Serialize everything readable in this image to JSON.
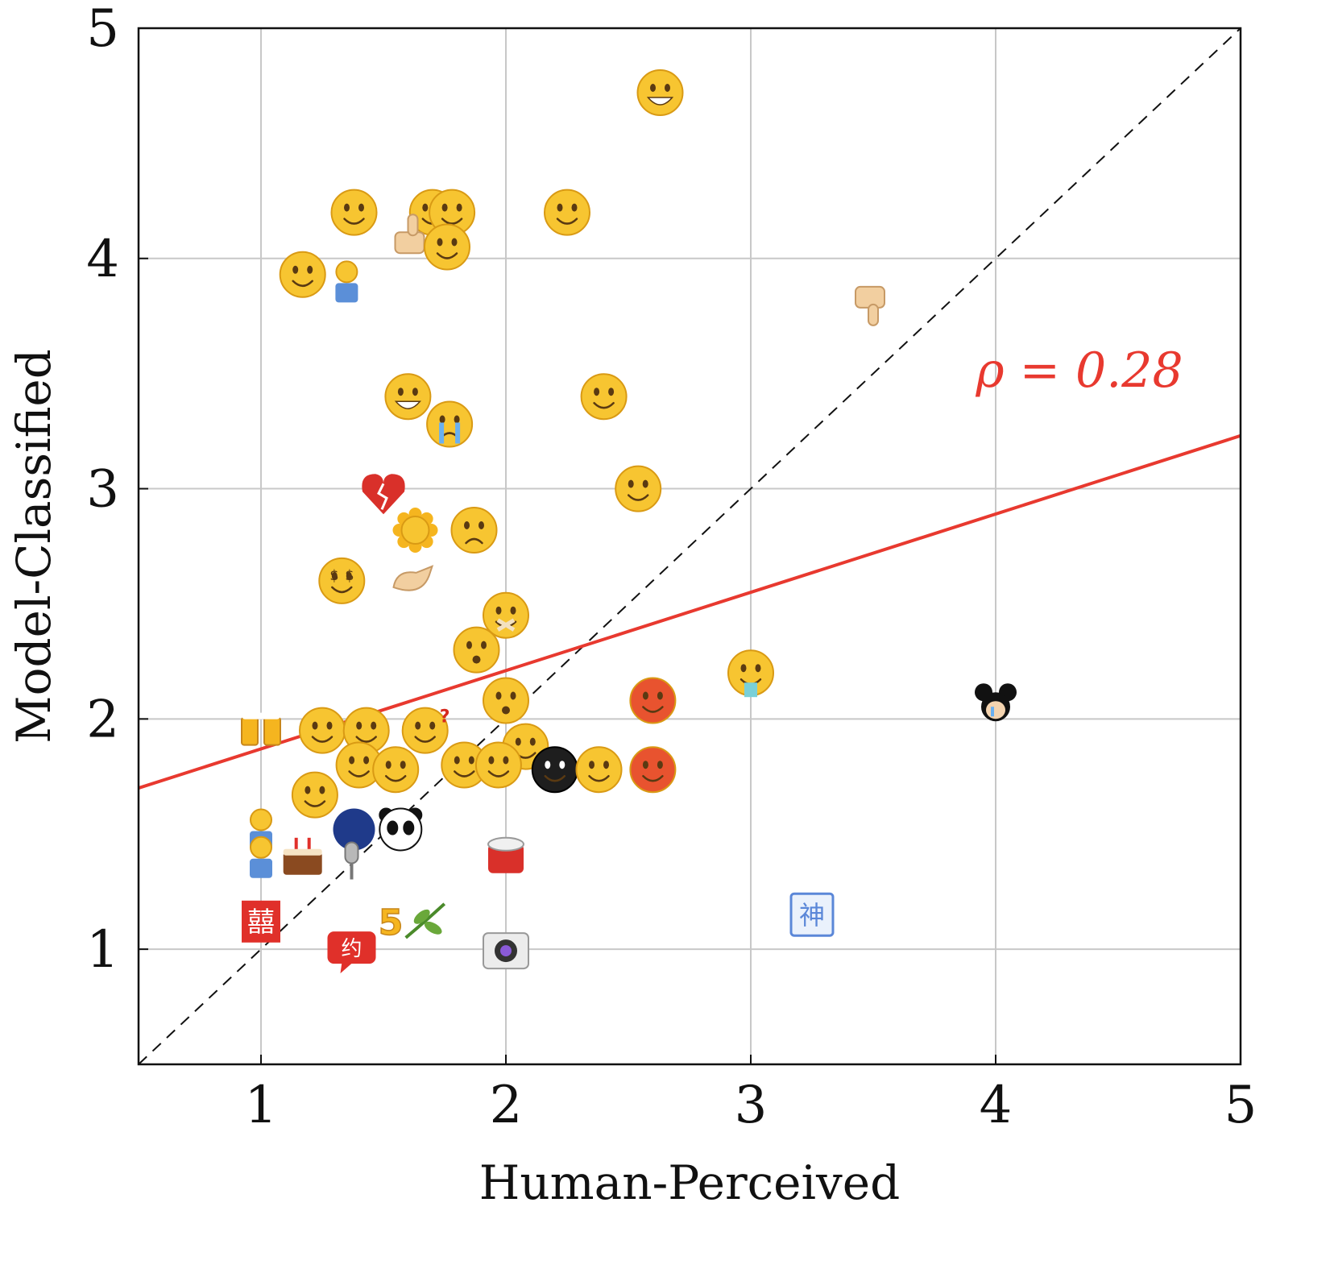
{
  "chart_data": {
    "type": "scatter",
    "xlabel": "Human-Perceived",
    "ylabel": "Model-Classified",
    "xlim": [
      0.5,
      5
    ],
    "ylim": [
      0.5,
      5
    ],
    "xticks": [
      "1",
      "2",
      "3",
      "4",
      "5"
    ],
    "yticks": [
      "1",
      "2",
      "3",
      "4",
      "5"
    ],
    "grid": true,
    "reference_line": "y = x (dashed)",
    "fit_line": {
      "color": "#e8392f",
      "intercept": 1.53,
      "slope": 0.34
    },
    "correlation_label": "ρ = 0.28",
    "colors": {
      "face": "#f7c531",
      "face_dark": "#d99a14",
      "fit": "#e8392f",
      "red_icon": "#e0302a",
      "blue_icon": "#5b87d8"
    },
    "points": [
      {
        "x": 2.63,
        "y": 4.72,
        "icon": "grin-face-icon"
      },
      {
        "x": 1.38,
        "y": 4.2,
        "icon": "eye-roll-face-icon"
      },
      {
        "x": 1.7,
        "y": 4.2,
        "icon": "face-icon"
      },
      {
        "x": 1.78,
        "y": 4.2,
        "icon": "face-icon"
      },
      {
        "x": 1.62,
        "y": 4.1,
        "icon": "thumbs-up-icon"
      },
      {
        "x": 1.76,
        "y": 4.05,
        "icon": "face-icon"
      },
      {
        "x": 2.25,
        "y": 4.2,
        "icon": "smirk-face-icon"
      },
      {
        "x": 1.17,
        "y": 3.93,
        "icon": "wink-tongue-face-icon"
      },
      {
        "x": 1.35,
        "y": 3.9,
        "icon": "person-icon"
      },
      {
        "x": 3.5,
        "y": 3.8,
        "icon": "thumbs-down-icon"
      },
      {
        "x": 1.6,
        "y": 3.4,
        "icon": "big-grin-face-icon"
      },
      {
        "x": 2.4,
        "y": 3.4,
        "icon": "annoyed-face-icon"
      },
      {
        "x": 1.77,
        "y": 3.28,
        "icon": "crying-face-icon"
      },
      {
        "x": 1.5,
        "y": 2.98,
        "icon": "broken-heart-icon"
      },
      {
        "x": 1.63,
        "y": 2.82,
        "icon": "sun-icon"
      },
      {
        "x": 1.87,
        "y": 2.82,
        "icon": "sad-face-icon"
      },
      {
        "x": 2.54,
        "y": 3.0,
        "icon": "face-icon"
      },
      {
        "x": 1.33,
        "y": 2.6,
        "icon": "money-face-icon"
      },
      {
        "x": 1.62,
        "y": 2.6,
        "icon": "hand-icon"
      },
      {
        "x": 2.0,
        "y": 2.45,
        "icon": "shush-face-icon"
      },
      {
        "x": 1.88,
        "y": 2.3,
        "icon": "dizzy-face-icon"
      },
      {
        "x": 2.0,
        "y": 2.08,
        "icon": "surprised-face-icon"
      },
      {
        "x": 3.0,
        "y": 2.2,
        "icon": "vomit-face-icon"
      },
      {
        "x": 2.6,
        "y": 2.08,
        "icon": "angry-face-icon"
      },
      {
        "x": 4.0,
        "y": 2.06,
        "icon": "mickey-icon"
      },
      {
        "x": 1.0,
        "y": 1.95,
        "icon": "cheers-icon"
      },
      {
        "x": 1.25,
        "y": 1.95,
        "icon": "smile-face-icon"
      },
      {
        "x": 1.43,
        "y": 1.95,
        "icon": "face-icon"
      },
      {
        "x": 1.67,
        "y": 1.95,
        "icon": "question-face-icon"
      },
      {
        "x": 2.08,
        "y": 1.88,
        "icon": "face-icon"
      },
      {
        "x": 1.4,
        "y": 1.8,
        "icon": "face-icon"
      },
      {
        "x": 1.55,
        "y": 1.78,
        "icon": "face-icon"
      },
      {
        "x": 1.83,
        "y": 1.8,
        "icon": "face-icon"
      },
      {
        "x": 1.97,
        "y": 1.8,
        "icon": "face-icon"
      },
      {
        "x": 2.2,
        "y": 1.78,
        "icon": "black-face-icon"
      },
      {
        "x": 2.38,
        "y": 1.78,
        "icon": "face-icon"
      },
      {
        "x": 2.6,
        "y": 1.78,
        "icon": "angry-face-icon"
      },
      {
        "x": 1.22,
        "y": 1.67,
        "icon": "face-icon"
      },
      {
        "x": 1.38,
        "y": 1.52,
        "icon": "moon-icon"
      },
      {
        "x": 1.57,
        "y": 1.52,
        "icon": "panda-icon"
      },
      {
        "x": 1.0,
        "y": 1.52,
        "icon": "person-icon"
      },
      {
        "x": 1.0,
        "y": 1.4,
        "icon": "person-icon"
      },
      {
        "x": 1.17,
        "y": 1.4,
        "icon": "cake-icon"
      },
      {
        "x": 1.37,
        "y": 1.38,
        "icon": "microphone-icon"
      },
      {
        "x": 2.0,
        "y": 1.4,
        "icon": "drum-icon"
      },
      {
        "x": 1.0,
        "y": 1.12,
        "icon": "double-happiness-icon"
      },
      {
        "x": 1.53,
        "y": 1.12,
        "icon": "five-icon"
      },
      {
        "x": 1.67,
        "y": 1.12,
        "icon": "leaf-icon"
      },
      {
        "x": 1.37,
        "y": 1.0,
        "icon": "speech-badge-icon"
      },
      {
        "x": 2.0,
        "y": 1.0,
        "icon": "camera-icon"
      },
      {
        "x": 3.25,
        "y": 1.15,
        "icon": "badge-icon"
      }
    ]
  }
}
